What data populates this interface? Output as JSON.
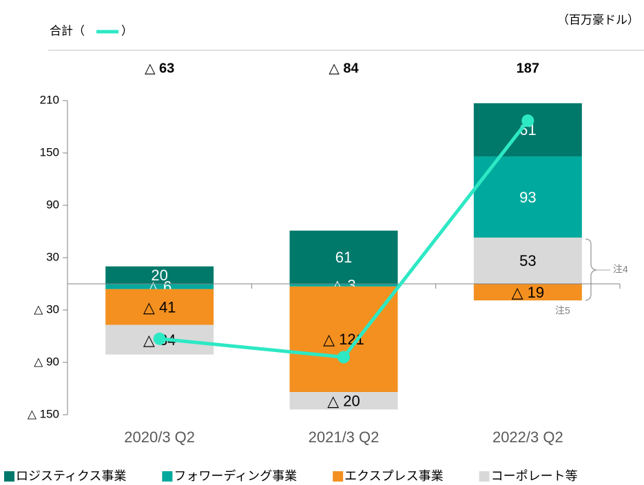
{
  "chart_data": {
    "type": "bar",
    "stacked": true,
    "unit": "（百万豪ドル）",
    "categories": [
      "2020/3 Q2",
      "2021/3 Q2",
      "2022/3 Q2"
    ],
    "series": [
      {
        "name": "ロジスティクス事業",
        "color": "#00796b",
        "values": [
          20,
          61,
          61
        ],
        "value_labels": [
          "20",
          "61",
          "61"
        ]
      },
      {
        "name": "フォワーディング事業",
        "color": "#00a99d",
        "values": [
          -6,
          -3,
          93
        ],
        "value_labels": [
          "△ 6",
          "△ 3",
          "93"
        ]
      },
      {
        "name": "エクスプレス事業",
        "color": "#f39020",
        "values": [
          -41,
          -121,
          -19
        ],
        "value_labels": [
          "△ 41",
          "△ 121",
          "△ 19"
        ]
      },
      {
        "name": "コーポレート等",
        "color": "#d9d9d9",
        "values": [
          -34,
          -20,
          53
        ],
        "value_labels": [
          "△ 34",
          "△ 20",
          "53"
        ]
      }
    ],
    "total": {
      "legend_text": [
        "合計（",
        "）"
      ],
      "color": "#2de8c4",
      "values": [
        -63,
        -84,
        187
      ],
      "value_labels": [
        "△ 63",
        "△ 84",
        "187"
      ]
    },
    "annotations": [
      "注4",
      "注5"
    ],
    "ylim": [
      -150,
      210
    ],
    "yticks": [
      {
        "value": -150,
        "label": "△ 150"
      },
      {
        "value": -90,
        "label": "△ 90"
      },
      {
        "value": -30,
        "label": "△ 30"
      },
      30,
      90,
      150,
      210
    ]
  }
}
